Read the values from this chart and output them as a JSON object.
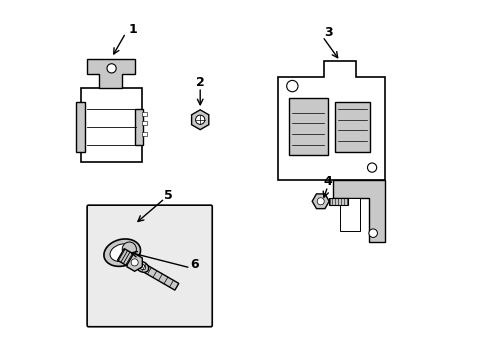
{
  "background_color": "#ffffff",
  "line_color": "#000000",
  "part_color": "#c8c8c8",
  "box_fill": "#e8e8e8",
  "figsize": [
    4.89,
    3.6
  ],
  "dpi": 100
}
